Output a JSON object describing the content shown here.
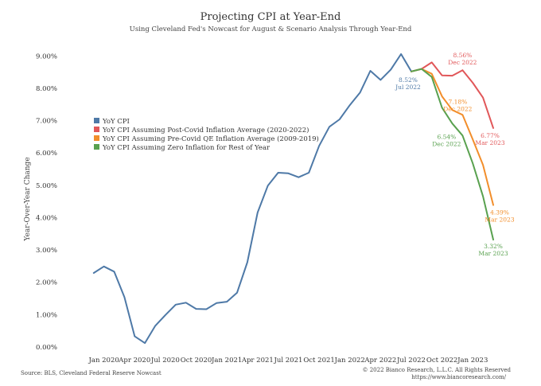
{
  "chart_data": {
    "type": "line",
    "title": "Projecting CPI at Year-End",
    "subtitle": "Using Cleveland Fed's Nowcast for August & Scenario Analysis Through Year-End",
    "ylabel": "Year-Over-Year Change",
    "xlabel": "",
    "ylim": [
      0,
      9.5
    ],
    "y_ticks": [
      0,
      1,
      2,
      3,
      4,
      5,
      6,
      7,
      8,
      9
    ],
    "y_tick_labels": [
      "0.00%",
      "1.00%",
      "2.00%",
      "3.00%",
      "4.00%",
      "5.00%",
      "6.00%",
      "7.00%",
      "8.00%",
      "9.00%"
    ],
    "x_start": "2019-10",
    "x_end": "2023-03",
    "x_ticks": [
      "2020-01",
      "2020-04",
      "2020-07",
      "2020-10",
      "2021-01",
      "2021-04",
      "2021-07",
      "2021-10",
      "2022-01",
      "2022-04",
      "2022-07",
      "2022-10",
      "2023-01"
    ],
    "x_tick_labels": [
      "Jan 2020",
      "Apr 2020",
      "Jul 2020",
      "Oct 2020",
      "Jan 2021",
      "Apr 2021",
      "Jul 2021",
      "Oct 2021",
      "Jan 2022",
      "Apr 2022",
      "Jul 2022",
      "Oct 2022",
      "Jan 2023"
    ],
    "grid": false,
    "legend_position": "upper-left",
    "series": [
      {
        "name": "YoY CPI",
        "color": "#4e79a7",
        "x": [
          "2019-12",
          "2020-01",
          "2020-02",
          "2020-03",
          "2020-04",
          "2020-05",
          "2020-06",
          "2020-07",
          "2020-08",
          "2020-09",
          "2020-10",
          "2020-11",
          "2020-12",
          "2021-01",
          "2021-02",
          "2021-03",
          "2021-04",
          "2021-05",
          "2021-06",
          "2021-07",
          "2021-08",
          "2021-09",
          "2021-10",
          "2021-11",
          "2021-12",
          "2022-01",
          "2022-02",
          "2022-03",
          "2022-04",
          "2022-05",
          "2022-06",
          "2022-07"
        ],
        "values": [
          2.29,
          2.49,
          2.33,
          1.54,
          0.33,
          0.12,
          0.65,
          0.99,
          1.31,
          1.37,
          1.18,
          1.17,
          1.36,
          1.4,
          1.68,
          2.62,
          4.16,
          4.99,
          5.39,
          5.37,
          5.25,
          5.39,
          6.22,
          6.81,
          7.04,
          7.48,
          7.87,
          8.54,
          8.26,
          8.58,
          9.06,
          8.52
        ]
      },
      {
        "name": "YoY CPI Assuming Post-Covid Inflation Average (2020-2022)",
        "color": "#e15759",
        "x": [
          "2022-07",
          "2022-08",
          "2022-09",
          "2022-10",
          "2022-11",
          "2022-12",
          "2023-01",
          "2023-02",
          "2023-03"
        ],
        "values": [
          8.52,
          8.6,
          8.8,
          8.4,
          8.39,
          8.56,
          8.17,
          7.71,
          6.77
        ]
      },
      {
        "name": "YoY CPI Assuming Pre-Covid QE Inflation Average (2009-2019)",
        "color": "#f28e2b",
        "x": [
          "2022-07",
          "2022-08",
          "2022-09",
          "2022-10",
          "2022-11",
          "2022-12",
          "2023-01",
          "2023-02",
          "2023-03"
        ],
        "values": [
          8.52,
          8.6,
          8.45,
          7.75,
          7.33,
          7.18,
          6.42,
          5.63,
          4.39
        ]
      },
      {
        "name": "YoY CPI Assuming Zero Inflation for Rest of Year",
        "color": "#59a14f",
        "x": [
          "2022-07",
          "2022-08",
          "2022-09",
          "2022-10",
          "2022-11",
          "2022-12",
          "2023-01",
          "2023-02",
          "2023-03"
        ],
        "values": [
          8.52,
          8.6,
          8.35,
          7.4,
          6.91,
          6.54,
          5.68,
          4.66,
          3.32
        ]
      }
    ],
    "annotations": [
      {
        "label": "8.52%",
        "sub": "Jul 2022",
        "series": 0,
        "x": "2022-07",
        "color": "#4e79a7"
      },
      {
        "label": "8.56%",
        "sub": "Dec 2022",
        "series": 1,
        "x": "2022-12",
        "color": "#e15759"
      },
      {
        "label": "6.77%",
        "sub": "Mar 2023",
        "series": 1,
        "x": "2023-03",
        "color": "#e15759"
      },
      {
        "label": "7.18%",
        "sub": "Dec 2022",
        "series": 2,
        "x": "2022-12",
        "color": "#f28e2b"
      },
      {
        "label": "4.39%",
        "sub": "Mar 2023",
        "series": 2,
        "x": "2023-03",
        "color": "#f28e2b"
      },
      {
        "label": "6.54%",
        "sub": "Dec 2022",
        "series": 3,
        "x": "2022-12",
        "color": "#59a14f"
      },
      {
        "label": "3.32%",
        "sub": "Mar 2023",
        "series": 3,
        "x": "2023-03",
        "color": "#59a14f"
      }
    ]
  },
  "footer": {
    "source": "Source: BLS, Cleveland Federal Reserve Nowcast",
    "copyright": "© 2022 Bianco Research, L.L.C. All Rights Reserved",
    "url": "https://www.biancoresearch.com/"
  }
}
